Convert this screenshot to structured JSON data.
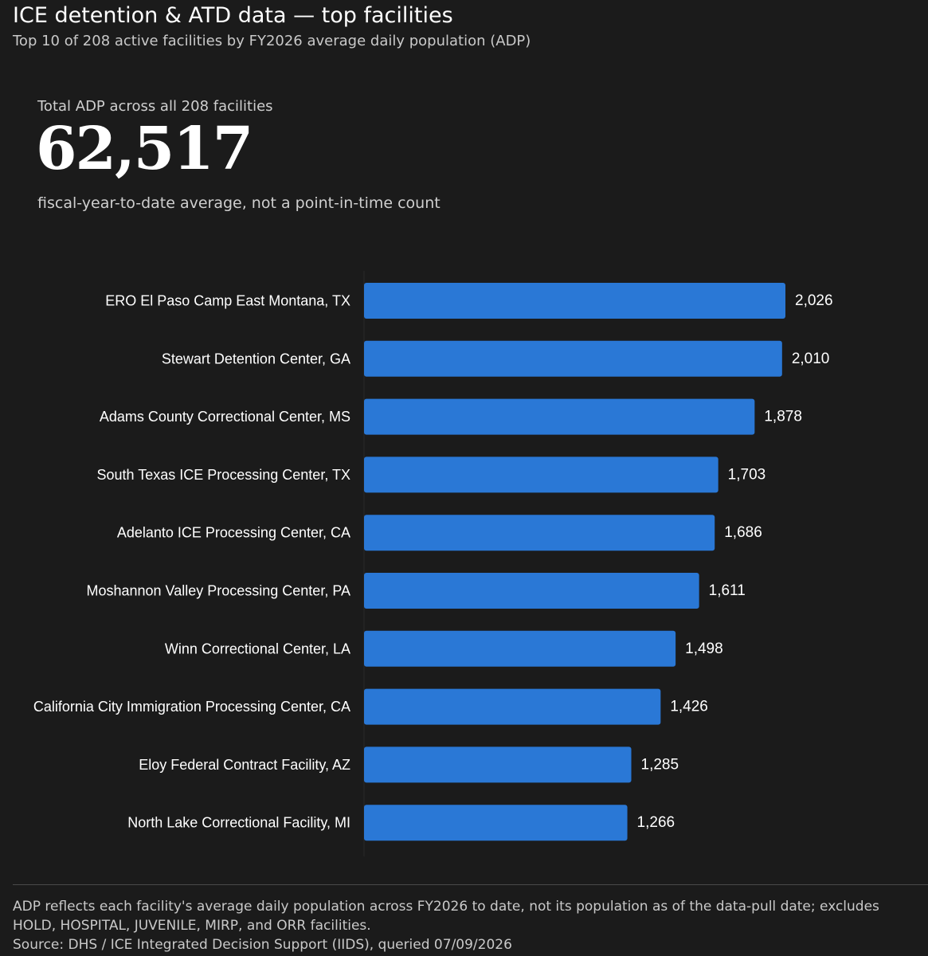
{
  "header": {
    "title": "ICE detention & ATD data — top facilities",
    "subtitle": "Top 10 of 208 active facilities by FY2026 average daily population (ADP)"
  },
  "kpi": {
    "label": "Total ADP across all 208 facilities",
    "value": "62,517",
    "note": "fiscal-year-to-date average, not a point-in-time count"
  },
  "chart_data": {
    "type": "bar",
    "orientation": "horizontal",
    "categories": [
      "ERO El Paso Camp East Montana, TX",
      "Stewart Detention Center, GA",
      "Adams County Correctional Center, MS",
      "South Texas ICE Processing Center, TX",
      "Adelanto ICE Processing Center, CA",
      "Moshannon Valley Processing Center, PA",
      "Winn Correctional Center, LA",
      "California City Immigration Processing Center, CA",
      "Eloy Federal Contract Facility, AZ",
      "North Lake Correctional Facility, MI"
    ],
    "values": [
      2026,
      2010,
      1878,
      1703,
      1686,
      1611,
      1498,
      1426,
      1285,
      1266
    ],
    "data_labels": [
      "2,026",
      "2,010",
      "1,878",
      "1,703",
      "1,686",
      "1,611",
      "1,498",
      "1,426",
      "1,285",
      "1,266"
    ],
    "xlim": [
      0,
      2026
    ],
    "grid": false,
    "legend": "none",
    "bar_color": "#2a78d6"
  },
  "footer": {
    "note": "ADP reflects each facility's average daily population across FY2026 to date, not its population as of the data-pull date; excludes HOLD, HOSPITAL, JUVENILE, MIRP, and ORR facilities.",
    "source": "Source: DHS / ICE Integrated Decision Support (IIDS), queried 07/09/2026"
  }
}
